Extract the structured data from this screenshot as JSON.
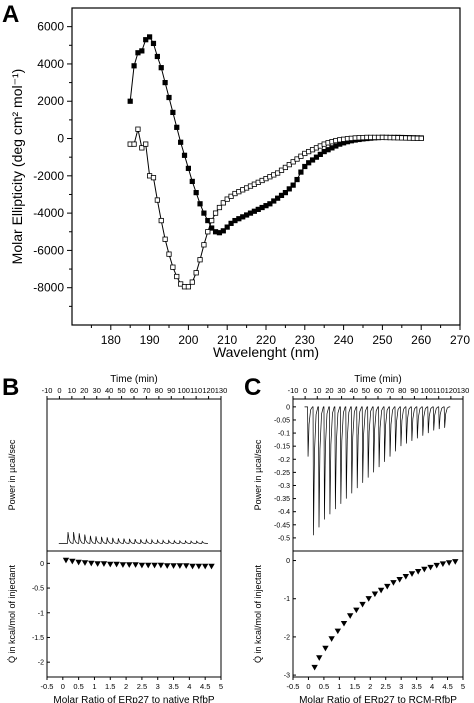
{
  "figure": {
    "panel_letters": [
      "A",
      "B",
      "C"
    ]
  },
  "chart_data": [
    {
      "panel": "A",
      "type": "scatter",
      "xlabel": "Wavelenght (nm)",
      "ylabel": "Molar Ellipticity (deg cm² mol⁻¹)",
      "xlim": [
        170,
        270
      ],
      "ylim": [
        -10000,
        7000
      ],
      "xticks": [
        180,
        190,
        200,
        210,
        220,
        230,
        240,
        250,
        260,
        270
      ],
      "yticks": [
        -8000,
        -6000,
        -4000,
        -2000,
        0,
        2000,
        4000,
        6000
      ],
      "series": [
        {
          "marker": "filled-square",
          "x": [
            185,
            186,
            187,
            188,
            189,
            190,
            191,
            192,
            193,
            194,
            195,
            196,
            197,
            198,
            199,
            200,
            201,
            202,
            203,
            204,
            205,
            206,
            207,
            208,
            209,
            210,
            211,
            212,
            213,
            214,
            215,
            216,
            217,
            218,
            219,
            220,
            221,
            222,
            223,
            224,
            225,
            226,
            227,
            228,
            229,
            230,
            231,
            232,
            233,
            234,
            235,
            236,
            237,
            238,
            239,
            240,
            241,
            242,
            243,
            244,
            245,
            246,
            247,
            248,
            249,
            250,
            251,
            252,
            253,
            254,
            255,
            256,
            257,
            258,
            259,
            260
          ],
          "y": [
            2000,
            3900,
            4600,
            4700,
            5300,
            5450,
            5100,
            4400,
            3800,
            3000,
            2200,
            1400,
            600,
            -200,
            -900,
            -1600,
            -2300,
            -2900,
            -3500,
            -4000,
            -4400,
            -4800,
            -5000,
            -5050,
            -4950,
            -4750,
            -4550,
            -4400,
            -4300,
            -4200,
            -4100,
            -4000,
            -3900,
            -3800,
            -3700,
            -3600,
            -3500,
            -3350,
            -3200,
            -3050,
            -2900,
            -2700,
            -2500,
            -2200,
            -1800,
            -1500,
            -1300,
            -1150,
            -1000,
            -850,
            -700,
            -600,
            -500,
            -400,
            -300,
            -230,
            -170,
            -120,
            -80,
            -50,
            -20,
            0,
            20,
            40,
            50,
            60,
            60,
            60,
            60,
            60,
            55,
            50,
            45,
            40,
            35,
            30
          ]
        },
        {
          "marker": "open-square",
          "x": [
            185,
            186,
            187,
            188,
            189,
            190,
            191,
            192,
            193,
            194,
            195,
            196,
            197,
            198,
            199,
            200,
            201,
            202,
            203,
            204,
            205,
            206,
            207,
            208,
            209,
            210,
            211,
            212,
            213,
            214,
            215,
            216,
            217,
            218,
            219,
            220,
            221,
            222,
            223,
            224,
            225,
            226,
            227,
            228,
            229,
            230,
            231,
            232,
            233,
            234,
            235,
            236,
            237,
            238,
            239,
            240,
            241,
            242,
            243,
            244,
            245,
            246,
            247,
            248,
            249,
            250,
            251,
            252,
            253,
            254,
            255,
            256,
            257,
            258,
            259,
            260
          ],
          "y": [
            -300,
            -300,
            500,
            -500,
            -300,
            -2000,
            -2100,
            -3300,
            -4400,
            -5400,
            -6200,
            -6900,
            -7400,
            -7800,
            -7950,
            -7950,
            -7700,
            -7200,
            -6500,
            -5700,
            -5000,
            -4400,
            -4000,
            -3700,
            -3450,
            -3250,
            -3100,
            -2950,
            -2850,
            -2750,
            -2650,
            -2550,
            -2450,
            -2350,
            -2250,
            -2150,
            -2050,
            -1950,
            -1850,
            -1700,
            -1550,
            -1400,
            -1250,
            -1100,
            -950,
            -800,
            -700,
            -600,
            -500,
            -400,
            -300,
            -230,
            -170,
            -110,
            -70,
            -40,
            -10,
            10,
            30,
            40,
            50,
            60,
            60,
            60,
            60,
            60,
            55,
            50,
            45,
            40,
            35,
            30,
            25,
            20,
            15,
            10
          ]
        }
      ]
    },
    {
      "panel": "B",
      "type": "line",
      "top": {
        "xlabel": "Time (min)",
        "ylabel": "Power in µcal/sec",
        "xlim": [
          -10,
          130
        ],
        "ylim": [
          -0.03,
          0.57
        ],
        "xticks": [
          -10,
          0,
          10,
          20,
          30,
          40,
          50,
          60,
          70,
          80,
          90,
          100,
          110,
          120,
          130
        ],
        "injection_times": [
          6.5,
          11,
          15.5,
          20,
          24.5,
          29,
          33.5,
          38,
          42.5,
          47,
          51.5,
          56,
          60.5,
          65,
          69.5,
          74,
          78.5,
          83,
          87.5,
          92,
          96.5,
          101,
          105.5,
          110,
          114.5
        ],
        "peak_heights": [
          0.045,
          0.045,
          0.04,
          0.035,
          0.03,
          0.028,
          0.026,
          0.024,
          0.022,
          0.02,
          0.019,
          0.018,
          0.017,
          0.016,
          0.015,
          0.014,
          0.013,
          0.012,
          0.012,
          0.011,
          0.01,
          0.01,
          0.009,
          0.009,
          0.008
        ]
      },
      "bottom": {
        "xlabel": "Molar Ratio of ERp27 to native RfbP",
        "ylabel": "Q̇ in kcal/mol of injectant",
        "xlim": [
          -0.5,
          5
        ],
        "ylim": [
          -2.3,
          0.25
        ],
        "xticks": [
          -0.5,
          0.0,
          0.5,
          1.0,
          1.5,
          2.0,
          2.5,
          3.0,
          3.5,
          4.0,
          4.5,
          5.0
        ],
        "yticks": [
          -2.0,
          -1.5,
          -1.0,
          -0.5,
          0.0
        ],
        "x": [
          0.1,
          0.3,
          0.5,
          0.7,
          0.9,
          1.1,
          1.3,
          1.5,
          1.7,
          1.9,
          2.1,
          2.3,
          2.5,
          2.7,
          2.9,
          3.1,
          3.3,
          3.5,
          3.7,
          3.9,
          4.1,
          4.3,
          4.5,
          4.7
        ],
        "y": [
          0.06,
          0.04,
          0.02,
          0.01,
          0.0,
          -0.01,
          -0.01,
          -0.02,
          -0.02,
          -0.03,
          -0.03,
          -0.03,
          -0.04,
          -0.04,
          -0.04,
          -0.04,
          -0.05,
          -0.05,
          -0.05,
          -0.05,
          -0.06,
          -0.06,
          -0.06,
          -0.06
        ]
      }
    },
    {
      "panel": "C",
      "type": "line",
      "top": {
        "xlabel": "Time (min)",
        "ylabel": "Power in µcal/sec",
        "xlim": [
          -10,
          130
        ],
        "ylim": [
          -0.55,
          0.03
        ],
        "xticks": [
          -10,
          0,
          10,
          20,
          30,
          40,
          50,
          60,
          70,
          80,
          90,
          100,
          110,
          120,
          130
        ],
        "yticks": [
          -0.5,
          -0.45,
          -0.4,
          -0.35,
          -0.3,
          -0.25,
          -0.2,
          -0.15,
          -0.1,
          -0.05,
          0.0
        ],
        "injection_times": [
          2,
          6.5,
          11,
          15.5,
          20,
          24.5,
          29,
          33.5,
          38,
          42.5,
          47,
          51.5,
          56,
          60.5,
          65,
          69.5,
          74,
          78.5,
          83,
          87.5,
          92,
          96.5,
          101,
          105.5,
          110,
          114.5
        ],
        "peak_depths": [
          -0.19,
          -0.49,
          -0.46,
          -0.43,
          -0.41,
          -0.39,
          -0.37,
          -0.35,
          -0.33,
          -0.31,
          -0.29,
          -0.27,
          -0.25,
          -0.23,
          -0.21,
          -0.19,
          -0.17,
          -0.15,
          -0.14,
          -0.13,
          -0.12,
          -0.11,
          -0.1,
          -0.09,
          -0.085,
          -0.08
        ]
      },
      "bottom": {
        "xlabel": "Molar Ratio of ERp27 to RCM-RfbP",
        "ylabel": "Q̇ in kcal/mol of injectant",
        "xlim": [
          -0.5,
          5
        ],
        "ylim": [
          -3.05,
          0.25
        ],
        "xticks": [
          -0.5,
          0.0,
          0.5,
          1.0,
          1.5,
          2.0,
          2.5,
          3.0,
          3.5,
          4.0,
          4.5,
          5.0
        ],
        "yticks": [
          -3.0,
          -2.0,
          -1.0,
          0.0
        ],
        "x": [
          0.2,
          0.35,
          0.55,
          0.75,
          0.95,
          1.15,
          1.35,
          1.55,
          1.75,
          1.95,
          2.15,
          2.35,
          2.55,
          2.75,
          2.95,
          3.15,
          3.35,
          3.55,
          3.75,
          3.95,
          4.15,
          4.35,
          4.55,
          4.75
        ],
        "y": [
          -2.8,
          -2.55,
          -2.3,
          -2.05,
          -1.85,
          -1.65,
          -1.45,
          -1.3,
          -1.15,
          -1.0,
          -0.88,
          -0.78,
          -0.68,
          -0.58,
          -0.5,
          -0.42,
          -0.35,
          -0.29,
          -0.23,
          -0.18,
          -0.13,
          -0.09,
          -0.06,
          -0.03
        ]
      }
    }
  ]
}
